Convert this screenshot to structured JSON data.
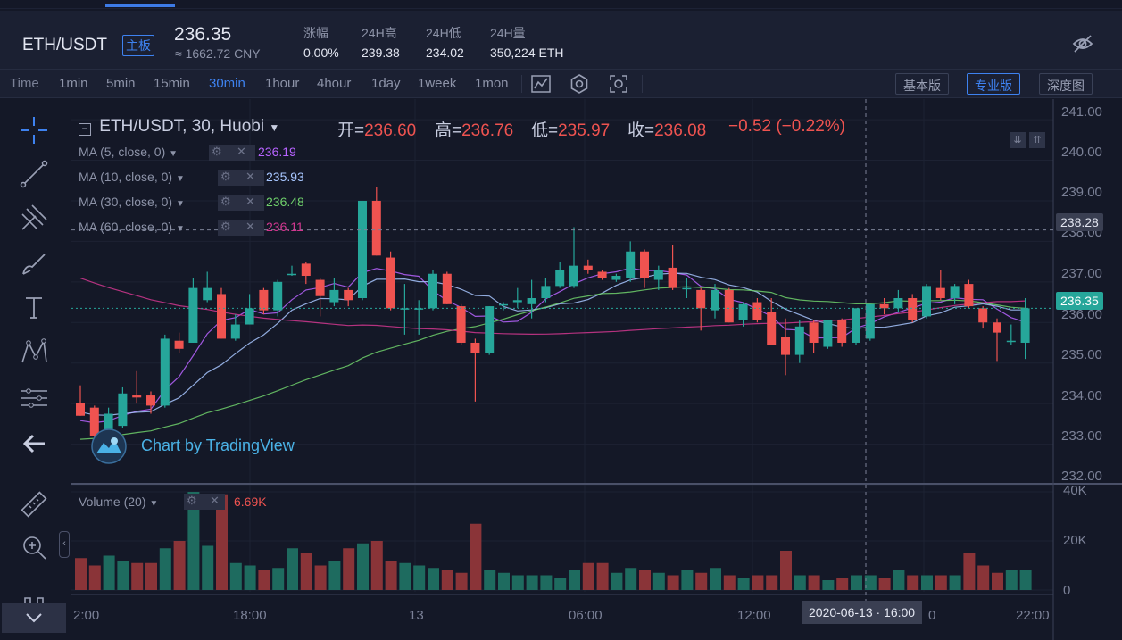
{
  "header": {
    "pair": "ETH/USDT",
    "board_tag": "主板",
    "price": "236.35",
    "cny": "≈ 1662.72 CNY",
    "stats": [
      {
        "label": "涨幅",
        "value": "0.00%"
      },
      {
        "label": "24H高",
        "value": "239.38"
      },
      {
        "label": "24H低",
        "value": "234.02"
      },
      {
        "label": "24H量",
        "value": "350,224 ETH"
      }
    ]
  },
  "toolbar": {
    "timeframes": [
      "Time",
      "1min",
      "5min",
      "15min",
      "30min",
      "1hour",
      "4hour",
      "1day",
      "1week",
      "1mon"
    ],
    "active_timeframe": "30min",
    "versions": [
      "基本版",
      "专业版",
      "深度图"
    ],
    "active_version": "专业版"
  },
  "legend": {
    "title": "ETH/USDT, 30, Huobi",
    "ohlc": [
      {
        "k": "开=",
        "v": "236.60"
      },
      {
        "k": "高=",
        "v": "236.76"
      },
      {
        "k": "低=",
        "v": "235.97"
      },
      {
        "k": "收=",
        "v": "236.08"
      }
    ],
    "change": "−0.52 (−0.22%)",
    "ma": [
      {
        "label": "MA (5, close, 0)",
        "value": "236.19",
        "color": "#b763ff"
      },
      {
        "label": "MA (10, close, 0)",
        "value": "235.93",
        "color": "#a7c6ff"
      },
      {
        "label": "MA (30, close, 0)",
        "value": "236.48",
        "color": "#6fd06b"
      },
      {
        "label": "MA (60, close, 0)",
        "value": "236.11",
        "color": "#d1378f"
      }
    ],
    "volume_label": "Volume (20)",
    "volume_value": "6.69K"
  },
  "watermark": "Chart by TradingView",
  "colors": {
    "up": "#26a69a",
    "down": "#ef5350",
    "bg": "#141827",
    "accent": "#3e82f0"
  },
  "price_axis": {
    "ticks": [
      "241.00",
      "240.00",
      "239.00",
      "238.00",
      "237.00",
      "236.00",
      "235.00",
      "234.00",
      "233.00",
      "232.00"
    ],
    "crosshair_price": "238.28",
    "last_price": "236.35"
  },
  "volume_axis": {
    "ticks": [
      "40K",
      "20K",
      "0"
    ]
  },
  "time_axis": {
    "ticks": [
      "2:00",
      "18:00",
      "13",
      "06:00",
      "12:00",
      "0",
      "22:00"
    ],
    "crosshair_time": "2020-06-13 · 16:00"
  },
  "icons": [
    "crosshair-icon",
    "trendline-icon",
    "pitchfork-icon",
    "brush-icon",
    "text-icon",
    "pattern-icon",
    "measure-icon",
    "back-arrow-icon",
    "ruler-icon",
    "zoom-icon",
    "magnet-icon",
    "visibility-off-icon",
    "chart-type-icon",
    "settings-icon",
    "screenshot-icon"
  ],
  "chart_data": {
    "type": "candlestick",
    "candles": [
      {
        "o": 234.02,
        "h": 234.45,
        "l": 233.7,
        "c": 233.7
      },
      {
        "o": 233.9,
        "h": 233.95,
        "l": 233.1,
        "c": 233.2
      },
      {
        "o": 233.3,
        "h": 233.9,
        "l": 233.25,
        "c": 233.75
      },
      {
        "o": 233.45,
        "h": 234.4,
        "l": 233.4,
        "c": 234.25
      },
      {
        "o": 234.2,
        "h": 234.8,
        "l": 234.0,
        "c": 234.15
      },
      {
        "o": 234.2,
        "h": 234.3,
        "l": 233.75,
        "c": 233.95
      },
      {
        "o": 233.95,
        "h": 235.7,
        "l": 233.9,
        "c": 235.6
      },
      {
        "o": 235.55,
        "h": 235.75,
        "l": 235.25,
        "c": 235.35
      },
      {
        "o": 235.5,
        "h": 237.1,
        "l": 235.5,
        "c": 236.85
      },
      {
        "o": 236.55,
        "h": 237.25,
        "l": 236.5,
        "c": 236.85
      },
      {
        "o": 236.7,
        "h": 236.85,
        "l": 235.6,
        "c": 235.6
      },
      {
        "o": 235.6,
        "h": 236.2,
        "l": 235.55,
        "c": 235.95
      },
      {
        "o": 235.95,
        "h": 236.7,
        "l": 235.95,
        "c": 236.35
      },
      {
        "o": 236.8,
        "h": 236.85,
        "l": 236.2,
        "c": 236.3
      },
      {
        "o": 236.3,
        "h": 237.05,
        "l": 236.15,
        "c": 237.0
      },
      {
        "o": 237.2,
        "h": 237.4,
        "l": 237.15,
        "c": 237.2
      },
      {
        "o": 237.45,
        "h": 237.5,
        "l": 236.95,
        "c": 237.15
      },
      {
        "o": 237.05,
        "h": 237.1,
        "l": 236.15,
        "c": 236.65
      },
      {
        "o": 236.5,
        "h": 237.1,
        "l": 236.4,
        "c": 236.8
      },
      {
        "o": 236.8,
        "h": 236.85,
        "l": 236.4,
        "c": 236.55
      },
      {
        "o": 236.6,
        "h": 239.0,
        "l": 236.55,
        "c": 239.0
      },
      {
        "o": 239.0,
        "h": 239.35,
        "l": 237.65,
        "c": 237.65
      },
      {
        "o": 237.6,
        "h": 237.75,
        "l": 236.3,
        "c": 236.35
      },
      {
        "o": 236.35,
        "h": 236.95,
        "l": 235.7,
        "c": 236.35
      },
      {
        "o": 236.35,
        "h": 236.55,
        "l": 235.7,
        "c": 236.35
      },
      {
        "o": 236.35,
        "h": 237.3,
        "l": 236.3,
        "c": 237.2
      },
      {
        "o": 237.2,
        "h": 237.25,
        "l": 236.45,
        "c": 236.45
      },
      {
        "o": 236.4,
        "h": 236.45,
        "l": 235.45,
        "c": 235.5
      },
      {
        "o": 235.5,
        "h": 235.6,
        "l": 234.05,
        "c": 235.25
      },
      {
        "o": 235.25,
        "h": 236.4,
        "l": 235.2,
        "c": 236.4
      },
      {
        "o": 236.45,
        "h": 236.5,
        "l": 236.3,
        "c": 236.45
      },
      {
        "o": 236.5,
        "h": 236.85,
        "l": 236.35,
        "c": 236.55
      },
      {
        "o": 236.45,
        "h": 237.05,
        "l": 236.1,
        "c": 236.6
      },
      {
        "o": 236.6,
        "h": 237.1,
        "l": 236.5,
        "c": 236.9
      },
      {
        "o": 236.9,
        "h": 237.5,
        "l": 236.85,
        "c": 237.3
      },
      {
        "o": 236.9,
        "h": 238.35,
        "l": 236.85,
        "c": 237.4
      },
      {
        "o": 237.4,
        "h": 237.55,
        "l": 237.2,
        "c": 237.3
      },
      {
        "o": 237.25,
        "h": 237.3,
        "l": 237.05,
        "c": 237.1
      },
      {
        "o": 237.05,
        "h": 237.2,
        "l": 237.0,
        "c": 237.15
      },
      {
        "o": 237.1,
        "h": 238.0,
        "l": 237.0,
        "c": 237.75
      },
      {
        "o": 237.75,
        "h": 237.8,
        "l": 236.85,
        "c": 237.1
      },
      {
        "o": 237.05,
        "h": 237.4,
        "l": 236.8,
        "c": 237.3
      },
      {
        "o": 237.35,
        "h": 237.9,
        "l": 236.8,
        "c": 236.85
      },
      {
        "o": 236.85,
        "h": 237.1,
        "l": 236.6,
        "c": 236.85
      },
      {
        "o": 236.8,
        "h": 236.85,
        "l": 235.8,
        "c": 236.35
      },
      {
        "o": 236.3,
        "h": 236.95,
        "l": 236.1,
        "c": 236.8
      },
      {
        "o": 236.8,
        "h": 236.85,
        "l": 236.0,
        "c": 236.0
      },
      {
        "o": 236.05,
        "h": 236.5,
        "l": 235.9,
        "c": 236.45
      },
      {
        "o": 236.5,
        "h": 236.6,
        "l": 236.0,
        "c": 236.05
      },
      {
        "o": 236.25,
        "h": 236.6,
        "l": 235.45,
        "c": 235.45
      },
      {
        "o": 235.65,
        "h": 236.1,
        "l": 234.7,
        "c": 235.2
      },
      {
        "o": 235.2,
        "h": 236.05,
        "l": 235.0,
        "c": 235.9
      },
      {
        "o": 236.0,
        "h": 236.05,
        "l": 235.25,
        "c": 235.5
      },
      {
        "o": 235.4,
        "h": 236.05,
        "l": 235.35,
        "c": 236.05
      },
      {
        "o": 236.05,
        "h": 236.1,
        "l": 235.4,
        "c": 235.5
      },
      {
        "o": 235.5,
        "h": 236.35,
        "l": 235.45,
        "c": 236.35
      },
      {
        "o": 235.6,
        "h": 236.45,
        "l": 235.55,
        "c": 236.45
      },
      {
        "o": 236.45,
        "h": 236.6,
        "l": 236.2,
        "c": 236.35
      },
      {
        "o": 236.35,
        "h": 236.8,
        "l": 236.25,
        "c": 236.6
      },
      {
        "o": 236.6,
        "h": 236.7,
        "l": 236.0,
        "c": 236.05
      },
      {
        "o": 236.15,
        "h": 236.95,
        "l": 236.1,
        "c": 236.9
      },
      {
        "o": 236.85,
        "h": 237.3,
        "l": 236.55,
        "c": 236.6
      },
      {
        "o": 236.6,
        "h": 236.95,
        "l": 236.45,
        "c": 236.9
      },
      {
        "o": 236.95,
        "h": 237.05,
        "l": 236.35,
        "c": 236.4
      },
      {
        "o": 236.35,
        "h": 236.4,
        "l": 235.85,
        "c": 236.0
      },
      {
        "o": 236.0,
        "h": 236.1,
        "l": 235.05,
        "c": 235.75
      },
      {
        "o": 235.55,
        "h": 235.95,
        "l": 235.45,
        "c": 235.55
      },
      {
        "o": 235.5,
        "h": 236.6,
        "l": 235.1,
        "c": 236.35
      }
    ],
    "volume": [
      13,
      10,
      14,
      12,
      11,
      11,
      17,
      20,
      40,
      18,
      39,
      11,
      10,
      8,
      9,
      17,
      15,
      10,
      12,
      17,
      19,
      20,
      12,
      11,
      10,
      9,
      8,
      7,
      27,
      8,
      7,
      6,
      6,
      6,
      5,
      8,
      11,
      11,
      7,
      9,
      8,
      7,
      6,
      8,
      7,
      9,
      6,
      5,
      6,
      6,
      16,
      6,
      6,
      4,
      5,
      6,
      6,
      5,
      8,
      6,
      6,
      6,
      6,
      15,
      10,
      7,
      8,
      8
    ],
    "price_range": [
      232.0,
      241.2
    ],
    "volume_range": [
      0,
      40
    ]
  }
}
